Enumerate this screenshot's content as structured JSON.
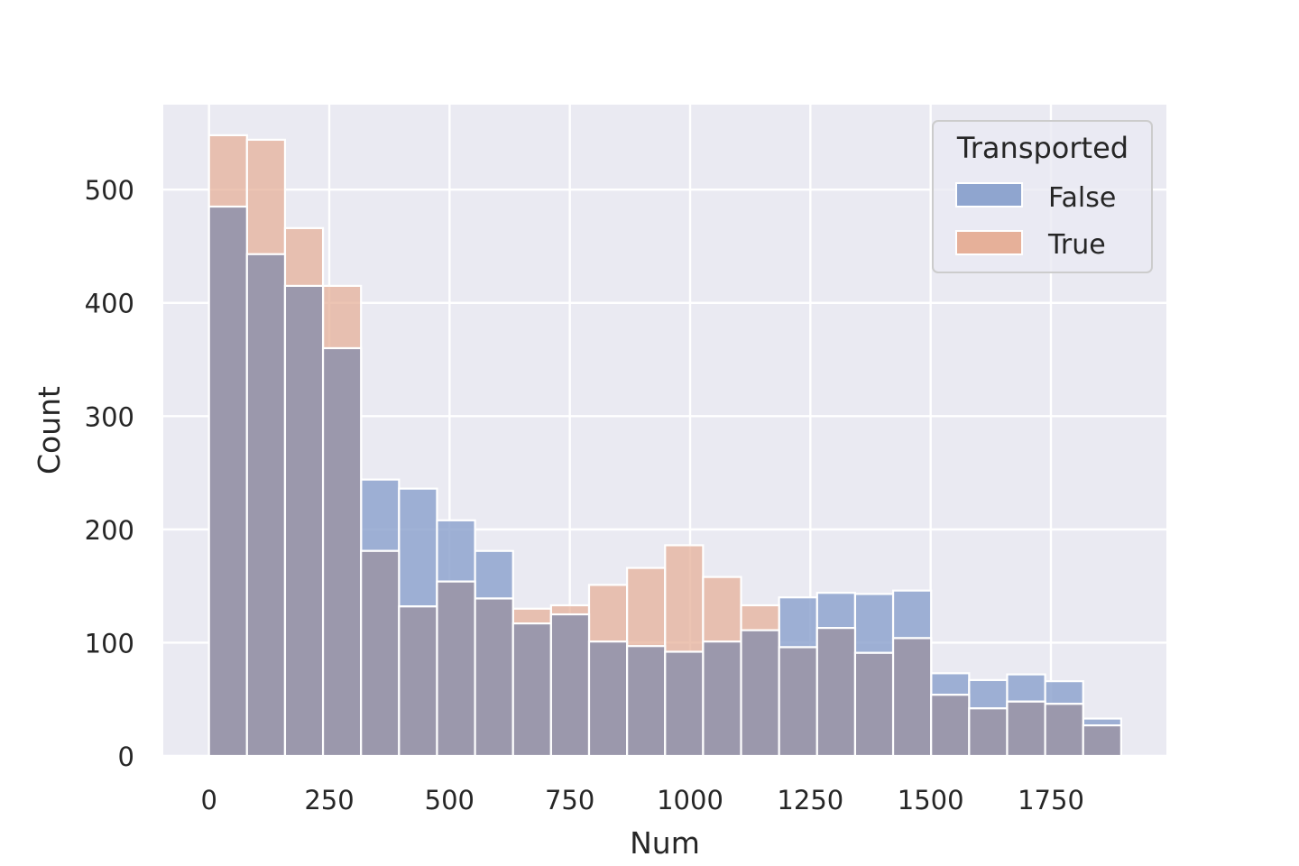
{
  "chart_data": {
    "type": "bar",
    "subtype": "overlaid histogram",
    "xlabel": "Num",
    "ylabel": "Count",
    "xlim": [
      -95,
      1990
    ],
    "ylim": [
      0,
      575
    ],
    "bin_width": 79,
    "bin_start": 0,
    "xticks": [
      0,
      250,
      500,
      750,
      1000,
      1250,
      1500,
      1750
    ],
    "xtick_labels": [
      "0",
      "250",
      "500",
      "750",
      "1000",
      "1250",
      "1500",
      "1750"
    ],
    "yticks": [
      0,
      100,
      200,
      300,
      400,
      500
    ],
    "ytick_labels": [
      "0",
      "100",
      "200",
      "300",
      "400",
      "500"
    ],
    "grid": true,
    "legend": {
      "title": "Transported",
      "position": "top-right"
    },
    "series": [
      {
        "name": "False",
        "color": "#8fa5cf",
        "values": [
          485,
          443,
          415,
          360,
          244,
          236,
          208,
          181,
          117,
          125,
          101,
          97,
          92,
          101,
          111,
          140,
          144,
          143,
          146,
          73,
          67,
          72,
          66,
          33
        ]
      },
      {
        "name": "True",
        "color": "#e6b099",
        "values": [
          548,
          544,
          466,
          415,
          181,
          132,
          154,
          139,
          130,
          133,
          151,
          166,
          186,
          158,
          133,
          96,
          113,
          91,
          104,
          54,
          42,
          48,
          46,
          27
        ]
      }
    ],
    "overlap_color": "#9b98ac"
  }
}
